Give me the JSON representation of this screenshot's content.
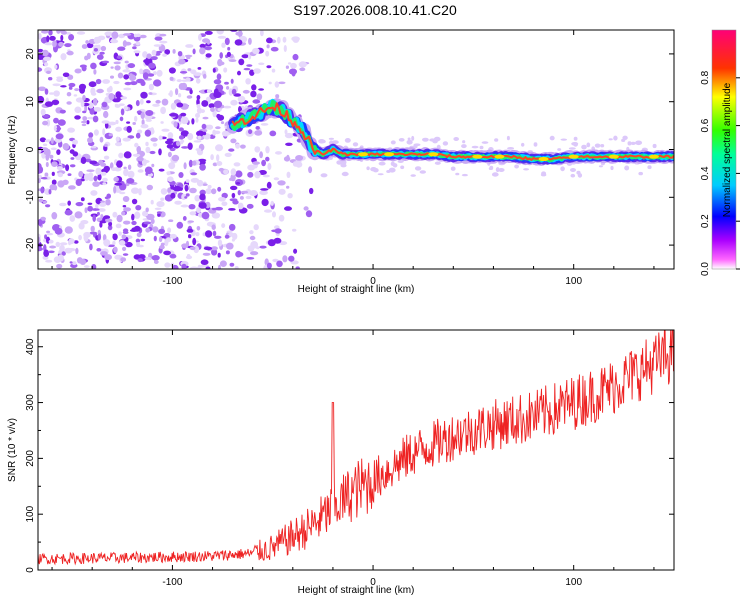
{
  "title": "S197.2026.008.10.41.C20",
  "chart_data": [
    {
      "type": "heatmap",
      "name": "spectrogram",
      "xlabel": "Height of straight line (km)",
      "ylabel": "Frequency (Hz)",
      "xlim": [
        -167,
        150
      ],
      "ylim": [
        -25,
        25
      ],
      "xticks": [
        -100,
        0,
        100
      ],
      "yticks": [
        -20,
        -10,
        0,
        10,
        20
      ],
      "colorbar": {
        "label": "Normalized spectral amplitude",
        "range": [
          0.0,
          1.0
        ],
        "ticks": [
          "0.0",
          "0.2",
          "0.4",
          "0.6",
          "0.8"
        ],
        "colormap": [
          "#ffffff",
          "#ff00ff",
          "#0000ff",
          "#00ffff",
          "#00ff00",
          "#ffff00",
          "#ff0000",
          "#ff0080"
        ]
      },
      "noise_region_x": [
        -167,
        -48
      ],
      "signal_track": {
        "x": [
          -70,
          -65,
          -60,
          -55,
          -50,
          -45,
          -40,
          -35,
          -30,
          -25,
          -20,
          -15,
          -10,
          -5,
          0,
          10,
          20,
          30,
          40,
          50,
          60,
          70,
          80,
          90,
          100,
          110,
          120,
          130,
          140,
          150
        ],
        "freq": [
          5,
          6,
          7,
          8,
          9,
          8,
          6,
          4,
          0,
          -1,
          0,
          -1,
          -1,
          -1,
          -1,
          -1,
          -1,
          -1,
          -1.5,
          -1.5,
          -1.5,
          -1.5,
          -2,
          -2,
          -1.5,
          -1.5,
          -1.5,
          -1.5,
          -1.5,
          -1.5
        ]
      }
    },
    {
      "type": "line",
      "name": "snr",
      "xlabel": "Height of straight line (km)",
      "ylabel": "SNR (10 * v/v)",
      "xlim": [
        -167,
        150
      ],
      "ylim": [
        0,
        430
      ],
      "xticks": [
        -100,
        0,
        100
      ],
      "yticks": [
        0,
        100,
        200,
        300,
        400
      ],
      "color": "#ee2222",
      "trend": {
        "x": [
          -167,
          -120,
          -80,
          -60,
          -50,
          -40,
          -30,
          -20,
          -10,
          0,
          10,
          20,
          40,
          60,
          80,
          100,
          115,
          130,
          150
        ],
        "y": [
          20,
          22,
          25,
          30,
          40,
          60,
          80,
          110,
          140,
          160,
          185,
          210,
          240,
          260,
          275,
          300,
          320,
          350,
          390
        ]
      },
      "spike": {
        "x": -20,
        "y": 300
      }
    }
  ]
}
